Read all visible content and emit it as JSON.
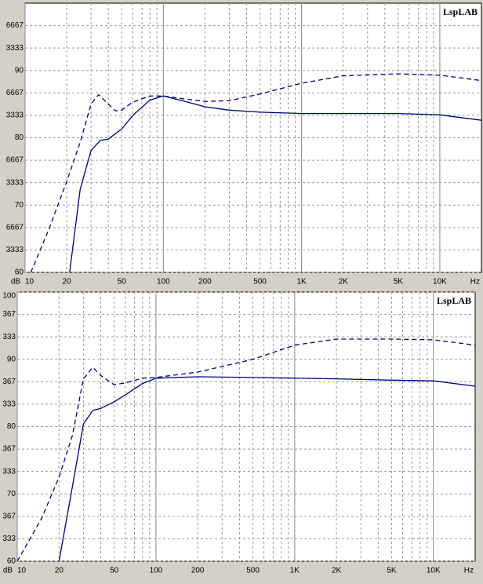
{
  "chart_data": [
    {
      "type": "line",
      "watermark": "LspLAB",
      "y_unit": "dB",
      "x_unit": "Hz",
      "xscale": "log",
      "grid": true,
      "xlim": [
        10,
        20000
      ],
      "xticks": [
        10,
        20,
        50,
        100,
        200,
        500,
        {
          "value": 1000,
          "label": "1K"
        },
        {
          "value": 2000,
          "label": "2K"
        },
        {
          "value": 5000,
          "label": "5K"
        },
        {
          "value": 10000,
          "label": "10K"
        }
      ],
      "minor_xticks": [
        30,
        40,
        60,
        70,
        80,
        90,
        300,
        400,
        600,
        700,
        800,
        900,
        3000,
        4000,
        6000,
        7000,
        8000,
        9000
      ],
      "ylim": [
        60,
        100
      ],
      "yticks": [
        60,
        {
          "value": 63.333,
          "label": "3333"
        },
        {
          "value": 66.667,
          "label": "6667"
        },
        70,
        {
          "value": 73.333,
          "label": "3333"
        },
        {
          "value": 76.667,
          "label": "6667"
        },
        80,
        {
          "value": 83.333,
          "label": "3333"
        },
        {
          "value": 86.667,
          "label": "6667"
        },
        90,
        {
          "value": 93.333,
          "label": "3333"
        },
        {
          "value": 96.667,
          "label": "6667"
        }
      ],
      "series": [
        {
          "color": "#000080",
          "dash": "6,4",
          "x": [
            11,
            15,
            20,
            25,
            30,
            34,
            40,
            45,
            50,
            60,
            80,
            100,
            150,
            200,
            300,
            500,
            1000,
            2000,
            5000,
            10000,
            20000
          ],
          "values": [
            60,
            66.6,
            73.5,
            79.3,
            85,
            86.4,
            85,
            84,
            84.1,
            85.3,
            86.2,
            86.2,
            85.7,
            85.4,
            85.5,
            86.5,
            88.1,
            89.2,
            89.5,
            89.3,
            88.5
          ]
        },
        {
          "color": "#000080",
          "dash": "none",
          "x": [
            21,
            25,
            30,
            35,
            40,
            50,
            60,
            80,
            100,
            150,
            200,
            300,
            500,
            1000,
            2000,
            5000,
            10000,
            20000
          ],
          "values": [
            60,
            72.3,
            78.1,
            79.6,
            79.8,
            81.3,
            83.3,
            85.6,
            86.2,
            85.3,
            84.6,
            84.1,
            83.8,
            83.6,
            83.6,
            83.6,
            83.4,
            82.6
          ]
        }
      ]
    },
    {
      "type": "line",
      "watermark": "LspLAB",
      "y_unit": "dB",
      "x_unit": "Hz",
      "xscale": "log",
      "grid": true,
      "xlim": [
        10,
        20000
      ],
      "xticks": [
        10,
        20,
        50,
        100,
        200,
        500,
        {
          "value": 1000,
          "label": "1K"
        },
        {
          "value": 2000,
          "label": "2K"
        },
        {
          "value": 5000,
          "label": "5K"
        },
        {
          "value": 10000,
          "label": "10K"
        }
      ],
      "minor_xticks": [
        30,
        40,
        60,
        70,
        80,
        90,
        300,
        400,
        600,
        700,
        800,
        900,
        3000,
        4000,
        6000,
        7000,
        8000,
        9000
      ],
      "ylim": [
        60,
        100
      ],
      "yticks": [
        60,
        {
          "value": 63.333,
          "label": "333"
        },
        {
          "value": 66.667,
          "label": "367"
        },
        70,
        {
          "value": 73.333,
          "label": "333"
        },
        {
          "value": 76.667,
          "label": "367"
        },
        80,
        {
          "value": 83.333,
          "label": "333"
        },
        {
          "value": 86.667,
          "label": "367"
        },
        90,
        {
          "value": 93.333,
          "label": "333"
        },
        {
          "value": 96.667,
          "label": "367"
        },
        100
      ],
      "series": [
        {
          "color": "#000080",
          "dash": "6,4",
          "x": [
            10,
            15,
            20,
            25,
            30,
            35,
            40,
            50,
            60,
            80,
            100,
            200,
            500,
            1000,
            2000,
            5000,
            10000,
            20000
          ],
          "values": [
            60,
            66.4,
            72.5,
            78.7,
            87.1,
            88.8,
            87.6,
            86.2,
            86.5,
            87.2,
            87.3,
            88.1,
            90,
            92.1,
            93,
            93,
            92.9,
            92.1
          ]
        },
        {
          "color": "#000080",
          "dash": "none",
          "x": [
            20,
            25,
            30,
            35,
            40,
            50,
            60,
            80,
            100,
            200,
            500,
            1000,
            2000,
            5000,
            10000,
            20000
          ],
          "values": [
            60,
            71.1,
            80.4,
            82.4,
            82.7,
            83.7,
            84.7,
            86.4,
            87.2,
            87.4,
            87.3,
            87.2,
            87.1,
            86.9,
            86.8,
            86
          ]
        }
      ]
    }
  ]
}
